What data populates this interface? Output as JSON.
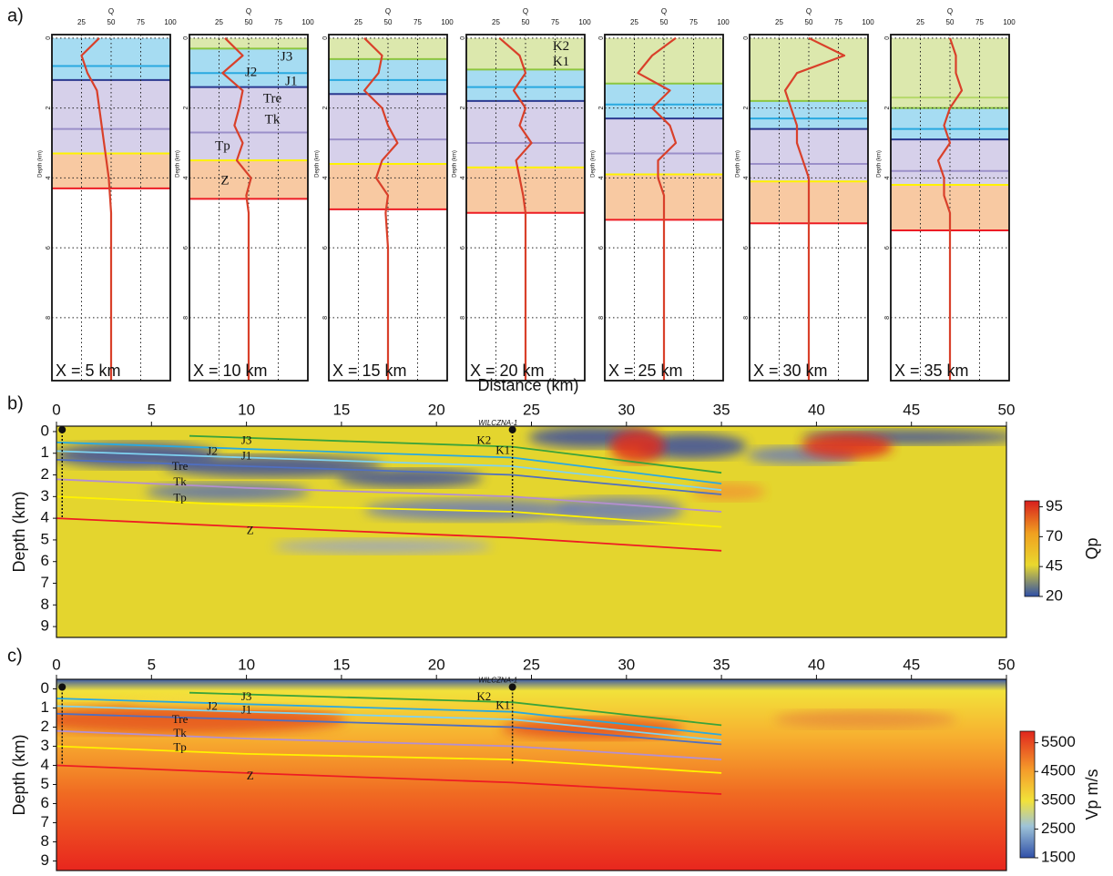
{
  "panel_labels": [
    "a)",
    "b)",
    "c)"
  ],
  "chart_data": [
    {
      "type": "profile",
      "title": "X = 5 km",
      "xlabel": "Q",
      "ylabel": "Depth (km)",
      "xlim": [
        0,
        100
      ],
      "xticks": [
        25,
        50,
        75,
        100
      ],
      "ylim": [
        -0.1,
        9.8
      ],
      "yticks": [
        0,
        2,
        4,
        6,
        8
      ],
      "grid": true,
      "color": "#d9402a",
      "depth": [
        0,
        0.5,
        1,
        1.5,
        2,
        2.5,
        3,
        3.5,
        4,
        4.5,
        5,
        6,
        7,
        8,
        9,
        9.8
      ],
      "values": [
        40,
        25,
        30,
        38,
        40,
        42,
        44,
        46,
        48,
        49,
        50,
        50,
        50,
        50,
        50,
        50
      ],
      "layers": [
        {
          "top": 0,
          "bottom": 1.2,
          "color": "#a6dcf2"
        },
        {
          "top": 1.2,
          "bottom": 3.3,
          "color": "#d6d0ea"
        },
        {
          "top": 3.3,
          "bottom": 4.3,
          "color": "#f8c9a2"
        }
      ],
      "horizons": [
        {
          "depth": 0.8,
          "color": "#29a9e0"
        },
        {
          "depth": 1.2,
          "color": "#2b3990"
        },
        {
          "depth": 2.6,
          "color": "#9b8fc9"
        },
        {
          "depth": 3.3,
          "color": "#fff200"
        },
        {
          "depth": 4.3,
          "color": "#ed1c24"
        }
      ]
    },
    {
      "type": "profile",
      "title": "X = 10 km",
      "xlabel": "Q",
      "ylabel": "Depth (km)",
      "xlim": [
        0,
        100
      ],
      "xticks": [
        25,
        50,
        75,
        100
      ],
      "ylim": [
        -0.1,
        9.8
      ],
      "yticks": [
        0,
        2,
        4,
        6,
        8
      ],
      "grid": true,
      "color": "#d9402a",
      "depth": [
        0,
        0.5,
        1,
        1.5,
        2,
        2.5,
        3,
        3.5,
        4,
        4.5,
        5,
        6,
        7,
        8,
        9,
        9.8
      ],
      "values": [
        30,
        45,
        28,
        45,
        42,
        38,
        45,
        40,
        52,
        48,
        50,
        50,
        50,
        50,
        50,
        50
      ],
      "layers": [
        {
          "top": 0,
          "bottom": 0.3,
          "color": "#dce8ad"
        },
        {
          "top": 0.3,
          "bottom": 1.4,
          "color": "#a6dcf2"
        },
        {
          "top": 1.4,
          "bottom": 3.5,
          "color": "#d6d0ea"
        },
        {
          "top": 3.5,
          "bottom": 4.6,
          "color": "#f8c9a2"
        }
      ],
      "horizons": [
        {
          "depth": 0.3,
          "color": "#8cc63f"
        },
        {
          "depth": 1.0,
          "color": "#29a9e0"
        },
        {
          "depth": 1.4,
          "color": "#2b3990"
        },
        {
          "depth": 2.7,
          "color": "#9b8fc9"
        },
        {
          "depth": 3.5,
          "color": "#fff200"
        },
        {
          "depth": 4.6,
          "color": "#ed1c24"
        }
      ],
      "annotations": [
        "J3",
        "J2",
        "J1",
        "Tre",
        "Tk",
        "Tp",
        "Z"
      ]
    },
    {
      "type": "profile",
      "title": "X = 15 km",
      "xlabel": "Q",
      "ylabel": "Depth (km)",
      "xlim": [
        0,
        100
      ],
      "xticks": [
        25,
        50,
        75,
        100
      ],
      "ylim": [
        -0.1,
        9.8
      ],
      "yticks": [
        0,
        2,
        4,
        6,
        8
      ],
      "grid": true,
      "color": "#d9402a",
      "depth": [
        0,
        0.5,
        1,
        1.5,
        2,
        2.5,
        3,
        3.5,
        4,
        4.5,
        5,
        6,
        7,
        8,
        9,
        9.8
      ],
      "values": [
        30,
        45,
        42,
        30,
        45,
        50,
        58,
        45,
        40,
        50,
        48,
        50,
        50,
        50,
        50,
        50
      ],
      "layers": [
        {
          "top": 0,
          "bottom": 0.6,
          "color": "#dce8ad"
        },
        {
          "top": 0.6,
          "bottom": 1.6,
          "color": "#a6dcf2"
        },
        {
          "top": 1.6,
          "bottom": 3.6,
          "color": "#d6d0ea"
        },
        {
          "top": 3.6,
          "bottom": 4.9,
          "color": "#f8c9a2"
        }
      ],
      "horizons": [
        {
          "depth": 0.6,
          "color": "#8cc63f"
        },
        {
          "depth": 1.2,
          "color": "#29a9e0"
        },
        {
          "depth": 1.6,
          "color": "#2b3990"
        },
        {
          "depth": 2.9,
          "color": "#9b8fc9"
        },
        {
          "depth": 3.6,
          "color": "#fff200"
        },
        {
          "depth": 4.9,
          "color": "#ed1c24"
        }
      ]
    },
    {
      "type": "profile",
      "title": "X = 20 km",
      "xlabel": "Q",
      "ylabel": "Depth (km)",
      "xlim": [
        0,
        100
      ],
      "xticks": [
        25,
        50,
        75,
        100
      ],
      "ylim": [
        -0.1,
        9.8
      ],
      "yticks": [
        0,
        2,
        4,
        6,
        8
      ],
      "grid": true,
      "color": "#d9402a",
      "depth": [
        0,
        0.5,
        1,
        1.5,
        2,
        2.5,
        3,
        3.5,
        4,
        4.5,
        5,
        6,
        7,
        8,
        9,
        9.8
      ],
      "values": [
        28,
        45,
        50,
        40,
        50,
        45,
        55,
        42,
        45,
        48,
        50,
        50,
        50,
        50,
        50,
        50
      ],
      "layers": [
        {
          "top": 0,
          "bottom": 0.9,
          "color": "#dce8ad"
        },
        {
          "top": 0.9,
          "bottom": 1.8,
          "color": "#a6dcf2"
        },
        {
          "top": 1.8,
          "bottom": 3.7,
          "color": "#d6d0ea"
        },
        {
          "top": 3.7,
          "bottom": 5.0,
          "color": "#f8c9a2"
        }
      ],
      "horizons": [
        {
          "depth": 0.9,
          "color": "#8cc63f"
        },
        {
          "depth": 1.4,
          "color": "#29a9e0"
        },
        {
          "depth": 1.8,
          "color": "#2b3990"
        },
        {
          "depth": 3.0,
          "color": "#9b8fc9"
        },
        {
          "depth": 3.7,
          "color": "#fff200"
        },
        {
          "depth": 5.0,
          "color": "#ed1c24"
        }
      ],
      "annotations": [
        "K2",
        "K1"
      ]
    },
    {
      "type": "profile",
      "title": "X = 25 km",
      "xlabel": "Q",
      "ylabel": "Depth (km)",
      "xlim": [
        0,
        100
      ],
      "xticks": [
        25,
        50,
        75,
        100
      ],
      "ylim": [
        -0.1,
        9.8
      ],
      "yticks": [
        0,
        2,
        4,
        6,
        8
      ],
      "grid": true,
      "color": "#d9402a",
      "depth": [
        0,
        0.5,
        1,
        1.5,
        2,
        2.5,
        3,
        3.5,
        4,
        4.5,
        5,
        6,
        7,
        8,
        9,
        9.8
      ],
      "values": [
        60,
        40,
        28,
        55,
        40,
        55,
        60,
        45,
        45,
        50,
        50,
        50,
        50,
        50,
        50,
        50
      ],
      "layers": [
        {
          "top": 0,
          "bottom": 1.3,
          "color": "#dce8ad"
        },
        {
          "top": 1.3,
          "bottom": 2.3,
          "color": "#a6dcf2"
        },
        {
          "top": 2.3,
          "bottom": 3.9,
          "color": "#d6d0ea"
        },
        {
          "top": 3.9,
          "bottom": 5.2,
          "color": "#f8c9a2"
        }
      ],
      "horizons": [
        {
          "depth": 1.3,
          "color": "#8cc63f"
        },
        {
          "depth": 1.9,
          "color": "#29a9e0"
        },
        {
          "depth": 2.3,
          "color": "#2b3990"
        },
        {
          "depth": 3.3,
          "color": "#9b8fc9"
        },
        {
          "depth": 3.9,
          "color": "#fff200"
        },
        {
          "depth": 5.2,
          "color": "#ed1c24"
        }
      ]
    },
    {
      "type": "profile",
      "title": "X = 30 km",
      "xlabel": "Q",
      "ylabel": "Depth (km)",
      "xlim": [
        0,
        100
      ],
      "xticks": [
        25,
        50,
        75,
        100
      ],
      "ylim": [
        -0.1,
        9.8
      ],
      "yticks": [
        0,
        2,
        4,
        6,
        8
      ],
      "grid": true,
      "color": "#d9402a",
      "depth": [
        0,
        0.5,
        1,
        1.5,
        2,
        2.5,
        3,
        3.5,
        4,
        4.5,
        5,
        6,
        7,
        8,
        9,
        9.8
      ],
      "values": [
        50,
        80,
        40,
        30,
        35,
        40,
        40,
        45,
        50,
        50,
        50,
        50,
        50,
        50,
        50,
        50
      ],
      "layers": [
        {
          "top": 0,
          "bottom": 1.8,
          "color": "#dce8ad"
        },
        {
          "top": 1.8,
          "bottom": 2.6,
          "color": "#a6dcf2"
        },
        {
          "top": 2.6,
          "bottom": 4.1,
          "color": "#d6d0ea"
        },
        {
          "top": 4.1,
          "bottom": 5.3,
          "color": "#f8c9a2"
        }
      ],
      "horizons": [
        {
          "depth": 1.8,
          "color": "#8cc63f"
        },
        {
          "depth": 2.3,
          "color": "#29a9e0"
        },
        {
          "depth": 2.6,
          "color": "#2b3990"
        },
        {
          "depth": 3.6,
          "color": "#9b8fc9"
        },
        {
          "depth": 4.1,
          "color": "#fff200"
        },
        {
          "depth": 5.3,
          "color": "#ed1c24"
        }
      ]
    },
    {
      "type": "profile",
      "title": "X = 35 km",
      "xlabel": "Q",
      "ylabel": "Depth (km)",
      "xlim": [
        0,
        100
      ],
      "xticks": [
        25,
        50,
        75,
        100
      ],
      "ylim": [
        -0.1,
        9.8
      ],
      "yticks": [
        0,
        2,
        4,
        6,
        8
      ],
      "grid": true,
      "color": "#d9402a",
      "depth": [
        0,
        0.5,
        1,
        1.5,
        2,
        2.5,
        3,
        3.5,
        4,
        4.5,
        5,
        6,
        7,
        8,
        9,
        9.8
      ],
      "values": [
        50,
        55,
        55,
        60,
        50,
        45,
        50,
        40,
        45,
        45,
        50,
        50,
        50,
        50,
        50,
        50
      ],
      "layers": [
        {
          "top": 0,
          "bottom": 2.0,
          "color": "#dce8ad"
        },
        {
          "top": 2.0,
          "bottom": 2.9,
          "color": "#a6dcf2"
        },
        {
          "top": 2.9,
          "bottom": 4.2,
          "color": "#d6d0ea"
        },
        {
          "top": 4.2,
          "bottom": 5.5,
          "color": "#f8c9a2"
        }
      ],
      "horizons": [
        {
          "depth": 1.7,
          "color": "#b5d96a"
        },
        {
          "depth": 2.0,
          "color": "#8cc63f"
        },
        {
          "depth": 2.6,
          "color": "#29a9e0"
        },
        {
          "depth": 2.9,
          "color": "#2b3990"
        },
        {
          "depth": 3.8,
          "color": "#9b8fc9"
        },
        {
          "depth": 4.2,
          "color": "#fff200"
        },
        {
          "depth": 5.5,
          "color": "#ed1c24"
        }
      ]
    },
    {
      "type": "section",
      "xlabel": "Distance (km)",
      "ylabel": "Depth (km)",
      "xlim": [
        0,
        50
      ],
      "xticks": [
        0,
        5,
        10,
        15,
        20,
        25,
        30,
        35,
        40,
        45,
        50
      ],
      "ylim": [
        -0.25,
        9.5
      ],
      "yticks": [
        0,
        1,
        2,
        3,
        4,
        5,
        6,
        7,
        8,
        9
      ],
      "colormap": "qp",
      "colorbar": {
        "label": "Qp",
        "lim": [
          20,
          100
        ],
        "ticks": [
          20,
          45,
          70,
          95
        ]
      },
      "wells": [
        {
          "x": 0.3
        },
        {
          "x": 24,
          "name": "WILCZNA-1"
        }
      ],
      "horizons": [
        {
          "x": [
            7,
            24,
            35
          ],
          "depth": [
            0.2,
            0.7,
            1.9
          ],
          "color": "#3aa33a"
        },
        {
          "x": [
            0,
            10,
            24,
            35
          ],
          "depth": [
            0.5,
            0.8,
            1.2,
            2.4
          ],
          "color": "#29a9e0"
        },
        {
          "x": [
            0,
            10,
            24,
            35
          ],
          "depth": [
            0.9,
            1.2,
            1.6,
            2.7
          ],
          "color": "#7fd3f0"
        },
        {
          "x": [
            0,
            10,
            24,
            35
          ],
          "depth": [
            1.3,
            1.6,
            2.0,
            2.9
          ],
          "color": "#4f6fc0"
        },
        {
          "x": [
            0,
            10,
            24,
            35
          ],
          "depth": [
            2.2,
            2.6,
            3.0,
            3.7
          ],
          "color": "#b48fd0"
        },
        {
          "x": [
            0,
            10,
            24,
            35
          ],
          "depth": [
            3.0,
            3.4,
            3.7,
            4.4
          ],
          "color": "#fff200"
        },
        {
          "x": [
            0,
            10,
            24,
            35
          ],
          "depth": [
            4.0,
            4.4,
            4.9,
            5.5
          ],
          "color": "#ed1c24"
        }
      ],
      "annotations": [
        "J3",
        "J2",
        "J1",
        "Tre",
        "Tk",
        "Tp",
        "Z",
        "K2",
        "K1"
      ]
    },
    {
      "type": "section",
      "xlabel": "Distance (km)",
      "ylabel": "Depth (km)",
      "xlim": [
        0,
        50
      ],
      "xticks": [
        0,
        5,
        10,
        15,
        20,
        25,
        30,
        35,
        40,
        45,
        50
      ],
      "ylim": [
        -0.5,
        9.5
      ],
      "yticks": [
        0,
        1,
        2,
        3,
        4,
        5,
        6,
        7,
        8,
        9
      ],
      "colormap": "vp",
      "colorbar": {
        "label": "Vp m/s",
        "lim": [
          1500,
          5900
        ],
        "ticks": [
          1500,
          2500,
          3500,
          4500,
          5500
        ]
      },
      "wells": [
        {
          "x": 0.3
        },
        {
          "x": 24,
          "name": "WILCZNA-1"
        }
      ],
      "horizons": [
        {
          "x": [
            7,
            24,
            35
          ],
          "depth": [
            0.2,
            0.7,
            1.9
          ],
          "color": "#3aa33a"
        },
        {
          "x": [
            0,
            10,
            24,
            35
          ],
          "depth": [
            0.5,
            0.8,
            1.2,
            2.4
          ],
          "color": "#29a9e0"
        },
        {
          "x": [
            0,
            10,
            24,
            35
          ],
          "depth": [
            0.9,
            1.2,
            1.6,
            2.7
          ],
          "color": "#7fd3f0"
        },
        {
          "x": [
            0,
            10,
            24,
            35
          ],
          "depth": [
            1.3,
            1.6,
            2.0,
            2.9
          ],
          "color": "#4f6fc0"
        },
        {
          "x": [
            0,
            10,
            24,
            35
          ],
          "depth": [
            2.2,
            2.6,
            3.0,
            3.7
          ],
          "color": "#b48fd0"
        },
        {
          "x": [
            0,
            10,
            24,
            35
          ],
          "depth": [
            3.0,
            3.4,
            3.7,
            4.4
          ],
          "color": "#fff200"
        },
        {
          "x": [
            0,
            10,
            24,
            35
          ],
          "depth": [
            4.0,
            4.4,
            4.9,
            5.5
          ],
          "color": "#ed1c24"
        }
      ],
      "annotations": [
        "J3",
        "J2",
        "J1",
        "Tre",
        "Tk",
        "Tp",
        "Z",
        "K2",
        "K1"
      ]
    }
  ]
}
